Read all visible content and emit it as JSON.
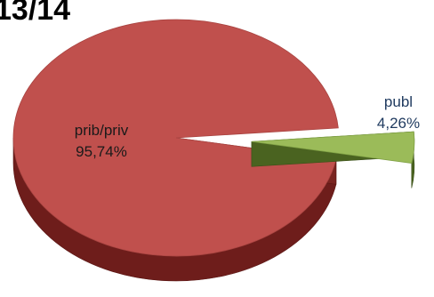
{
  "chart_data": {
    "type": "pie",
    "title": "13/14",
    "slices": [
      {
        "label": "prib/priv",
        "value": 95.74,
        "value_label": "95,74%",
        "color": "#c0504d",
        "side_color": "#6e1d1b",
        "text_color": "#1a1a1a"
      },
      {
        "label": "publ",
        "value": 4.26,
        "value_label": "4,26%",
        "color": "#9bbb59",
        "side_color": "#4a6320",
        "text_color": "#1f3a5f"
      }
    ],
    "exploded": "publ",
    "style": "3d"
  }
}
